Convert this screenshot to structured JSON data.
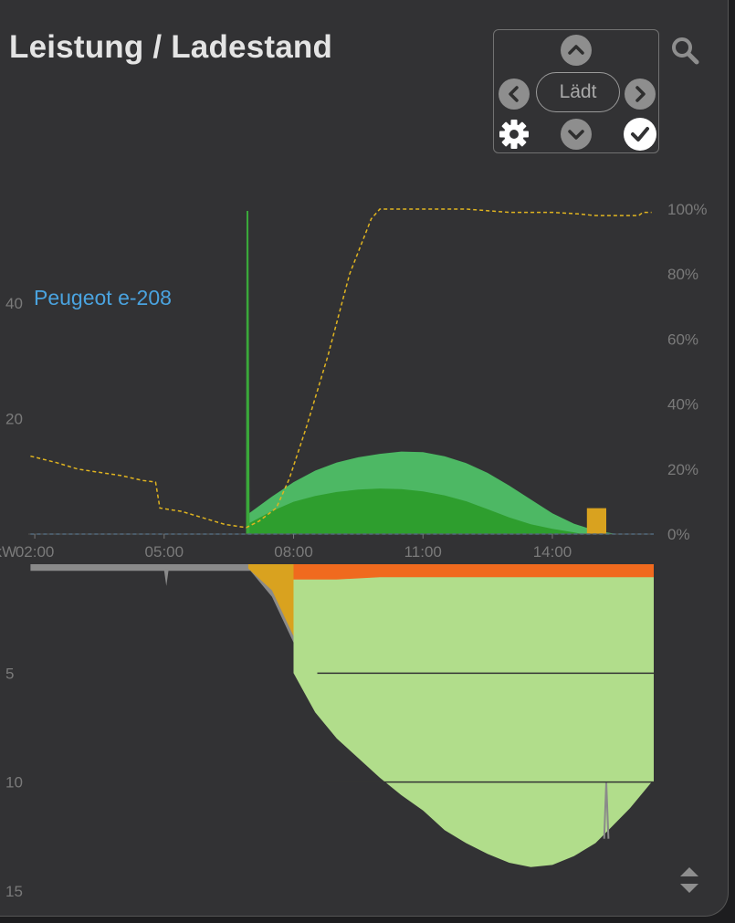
{
  "title": "Leistung / Ladestand",
  "vehicle_label": "Peugeot e-208",
  "nav": {
    "state_label": "Lädt",
    "icons": [
      "chevron-up-icon",
      "chevron-left-icon",
      "chevron-right-icon",
      "chevron-down-icon",
      "gear-icon",
      "check-icon",
      "search-icon",
      "sort-icon"
    ]
  },
  "chart_data": [
    {
      "type": "area",
      "title": "",
      "xlabel": "",
      "x_tick_labels": [
        "02:00",
        "05:00",
        "08:00",
        "11:00",
        "14:00"
      ],
      "x_ticks_hours": [
        2,
        5,
        8,
        11,
        14
      ],
      "xlim_hours": [
        1.85,
        16.35
      ],
      "ylabel": "kW",
      "ylim_kw": [
        0,
        56
      ],
      "y_ticks": [
        20,
        40
      ],
      "y2_ticks": [
        "0%",
        "20%",
        "40%",
        "60%",
        "80%",
        "100%"
      ],
      "y2lim_percent": [
        0,
        100
      ],
      "colors": {
        "solar_total": "#4db864",
        "solar_self": "#2e9e2e",
        "battery": "#d9a21f",
        "soc_line": "#e0b420",
        "wallbox_line": "#4a90c8",
        "spike": "#3aa83a"
      },
      "series": [
        {
          "color_key": "solar_total",
          "kind": "area",
          "points": [
            [
              6.95,
              0
            ],
            [
              6.95,
              3.5
            ],
            [
              7.5,
              6.5
            ],
            [
              8,
              9
            ],
            [
              8.5,
              11
            ],
            [
              9,
              12.4
            ],
            [
              9.5,
              13.3
            ],
            [
              10,
              13.9
            ],
            [
              10.5,
              14.3
            ],
            [
              11,
              14.2
            ],
            [
              11.5,
              13.5
            ],
            [
              12,
              12.3
            ],
            [
              12.5,
              10.6
            ],
            [
              13,
              8.4
            ],
            [
              13.5,
              6
            ],
            [
              14,
              3.6
            ],
            [
              14.5,
              1.8
            ],
            [
              15,
              0.6
            ],
            [
              15.5,
              0
            ]
          ]
        },
        {
          "color_key": "solar_self",
          "kind": "area",
          "points": [
            [
              6.95,
              0
            ],
            [
              6.95,
              1.8
            ],
            [
              7.5,
              4
            ],
            [
              8,
              5.6
            ],
            [
              8.5,
              6.6
            ],
            [
              9,
              7.3
            ],
            [
              9.5,
              7.7
            ],
            [
              10,
              7.9
            ],
            [
              10.5,
              7.8
            ],
            [
              11,
              7.4
            ],
            [
              11.5,
              6.7
            ],
            [
              12,
              5.7
            ],
            [
              12.5,
              4.3
            ],
            [
              13,
              2.9
            ],
            [
              13.5,
              1.7
            ],
            [
              14,
              0.9
            ],
            [
              14.5,
              0.3
            ],
            [
              14.7,
              0
            ]
          ]
        },
        {
          "color_key": "battery",
          "kind": "area",
          "points": [
            [
              14.8,
              0
            ],
            [
              14.8,
              4.5
            ],
            [
              15.25,
              4.5
            ],
            [
              15.25,
              0
            ]
          ]
        },
        {
          "color_key": "spike",
          "kind": "line",
          "points": [
            [
              6.92,
              0
            ],
            [
              6.93,
              56
            ],
            [
              6.96,
              0
            ]
          ]
        },
        {
          "color_key": "soc_line",
          "kind": "dashed-line",
          "axis": "percent",
          "points": [
            [
              1.9,
              24
            ],
            [
              2.2,
              23
            ],
            [
              2.5,
              22
            ],
            [
              3,
              20
            ],
            [
              3.5,
              19
            ],
            [
              4,
              18
            ],
            [
              4.5,
              16.5
            ],
            [
              4.8,
              16
            ],
            [
              4.9,
              8
            ],
            [
              5.4,
              7
            ],
            [
              5.9,
              5
            ],
            [
              6.4,
              3
            ],
            [
              6.9,
              2
            ],
            [
              7.2,
              4
            ],
            [
              7.6,
              8
            ],
            [
              7.9,
              17
            ],
            [
              8.3,
              33
            ],
            [
              8.8,
              55
            ],
            [
              9.3,
              80
            ],
            [
              9.8,
              97
            ],
            [
              10,
              100
            ],
            [
              12,
              100
            ],
            [
              13,
              99
            ],
            [
              14,
              99
            ],
            [
              14.6,
              98.5
            ],
            [
              15,
              98
            ],
            [
              15.5,
              98
            ],
            [
              16,
              98
            ],
            [
              16.1,
              99
            ],
            [
              16.3,
              99
            ]
          ]
        },
        {
          "color_key": "wallbox_line",
          "kind": "dashed-line",
          "points": [
            [
              1.9,
              0
            ],
            [
              16.35,
              0
            ]
          ]
        }
      ]
    },
    {
      "type": "area",
      "title": "",
      "xlabel": "",
      "ylabel": "",
      "ylim_kw": [
        0,
        15
      ],
      "y_ticks": [
        5,
        10,
        15
      ],
      "y_axis_inverted": true,
      "colors": {
        "grid_import": "#8a8a8a",
        "battery": "#d9a21f",
        "feed_in": "#b1dd8b",
        "peaks": "#f06a1e",
        "reference_line": "#333333"
      },
      "reference_lines_kw": [
        5,
        10
      ],
      "series": [
        {
          "color_key": "grid_import",
          "kind": "area",
          "points": [
            [
              1.9,
              0
            ],
            [
              1.9,
              0.3
            ],
            [
              4,
              0.3
            ],
            [
              5,
              0.3
            ],
            [
              5.05,
              1
            ],
            [
              5.1,
              0.3
            ],
            [
              6.5,
              0.3
            ],
            [
              7,
              0.3
            ],
            [
              7.5,
              1.5
            ],
            [
              8,
              3.6
            ],
            [
              8.4,
              4.4
            ],
            [
              9,
              4.3
            ],
            [
              9.5,
              3.3
            ],
            [
              9.8,
              2
            ],
            [
              10,
              1.3
            ],
            [
              11,
              1.3
            ],
            [
              12,
              1.2
            ],
            [
              13,
              1.3
            ],
            [
              14,
              1.3
            ],
            [
              15,
              1.3
            ],
            [
              15.3,
              1.5
            ],
            [
              15.4,
              1.3
            ],
            [
              16.3,
              1.3
            ],
            [
              16.35,
              0
            ]
          ]
        },
        {
          "color_key": "battery",
          "kind": "area",
          "points": [
            [
              6.95,
              0
            ],
            [
              6.95,
              0.2
            ],
            [
              7.5,
              1.2
            ],
            [
              8,
              3.3
            ],
            [
              8.4,
              4.0
            ],
            [
              9,
              4.0
            ],
            [
              9.5,
              3.1
            ],
            [
              9.8,
              1.5
            ],
            [
              10,
              0.6
            ],
            [
              16.35,
              0.3
            ],
            [
              16.35,
              0
            ]
          ]
        },
        {
          "color_key": "feed_in",
          "kind": "area",
          "points": [
            [
              8,
              0
            ],
            [
              8,
              5
            ],
            [
              8.5,
              6.8
            ],
            [
              9,
              8
            ],
            [
              9.5,
              8.9
            ],
            [
              10,
              9.8
            ],
            [
              10.5,
              10.6
            ],
            [
              11,
              11.3
            ],
            [
              11.5,
              12.2
            ],
            [
              12,
              12.8
            ],
            [
              12.5,
              13.3
            ],
            [
              13,
              13.7
            ],
            [
              13.5,
              13.9
            ],
            [
              14,
              13.8
            ],
            [
              14.5,
              13.4
            ],
            [
              15,
              12.8
            ],
            [
              15.3,
              12.2
            ],
            [
              15.8,
              11.2
            ],
            [
              16.3,
              10
            ],
            [
              16.35,
              10
            ],
            [
              16.35,
              0
            ]
          ]
        },
        {
          "color_key": "grid_import",
          "kind": "line",
          "points": [
            [
              15.2,
              12.6
            ],
            [
              15.25,
              10
            ],
            [
              15.3,
              12.6
            ]
          ]
        },
        {
          "color_key": "peaks",
          "kind": "area",
          "points": [
            [
              8,
              0
            ],
            [
              8,
              0.7
            ],
            [
              9,
              0.7
            ],
            [
              10,
              0.6
            ],
            [
              16.35,
              0.6
            ],
            [
              16.35,
              0
            ]
          ]
        }
      ]
    }
  ]
}
